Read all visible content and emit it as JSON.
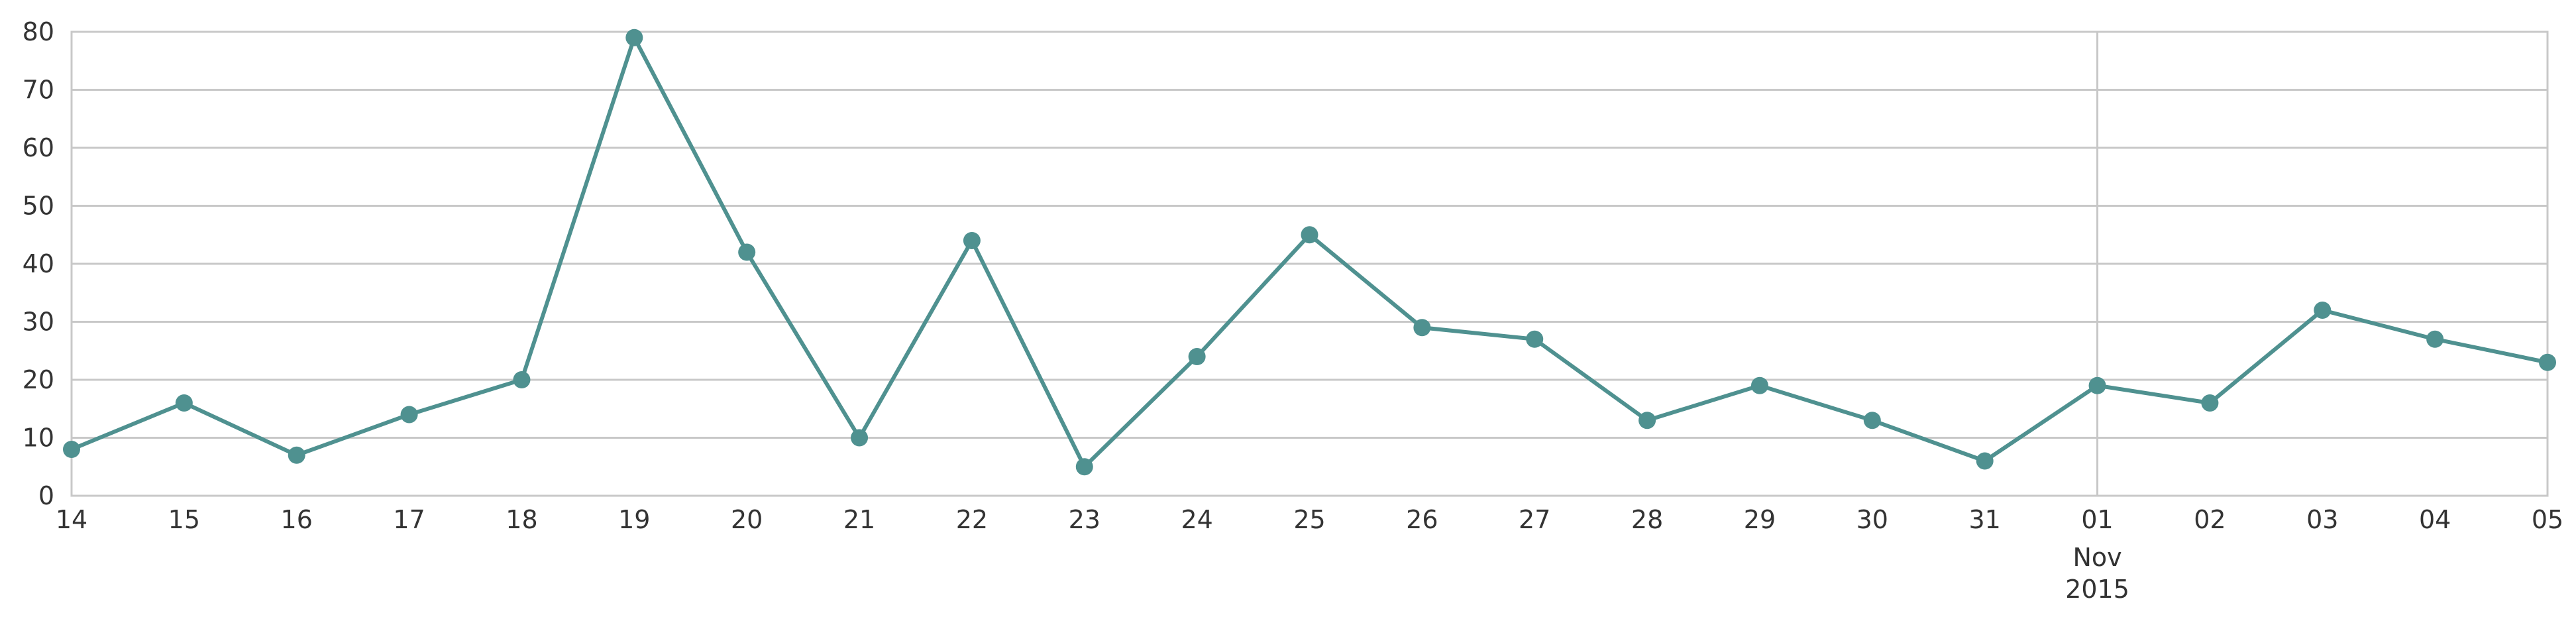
{
  "chart_data": {
    "type": "line",
    "x": [
      "2015-10-14",
      "2015-10-15",
      "2015-10-16",
      "2015-10-17",
      "2015-10-18",
      "2015-10-19",
      "2015-10-20",
      "2015-10-21",
      "2015-10-22",
      "2015-10-23",
      "2015-10-24",
      "2015-10-25",
      "2015-10-26",
      "2015-10-27",
      "2015-10-28",
      "2015-10-29",
      "2015-10-30",
      "2015-10-31",
      "2015-11-01",
      "2015-11-02",
      "2015-11-03",
      "2015-11-04",
      "2015-11-05"
    ],
    "tick_labels": [
      "14",
      "15",
      "16",
      "17",
      "18",
      "19",
      "20",
      "21",
      "22",
      "23",
      "24",
      "25",
      "26",
      "27",
      "28",
      "29",
      "30",
      "31",
      "01",
      "02",
      "03",
      "04",
      "05"
    ],
    "month_label": "Nov",
    "year_label": "2015",
    "series": [
      {
        "values": [
          8,
          16,
          7,
          14,
          20,
          79,
          42,
          10,
          44,
          5,
          24,
          45,
          29,
          27,
          13,
          19,
          13,
          6,
          19,
          16,
          32,
          27,
          23
        ],
        "color": "#4f9190"
      }
    ],
    "ylim": [
      0,
      80
    ],
    "yticks": [
      0,
      10,
      20,
      30,
      40,
      50,
      60,
      70,
      80
    ],
    "grid": true,
    "grid_color": "#c8c8c8",
    "axis_color": "#c8c8c8",
    "xlabel": "",
    "ylabel": "",
    "title": ""
  }
}
